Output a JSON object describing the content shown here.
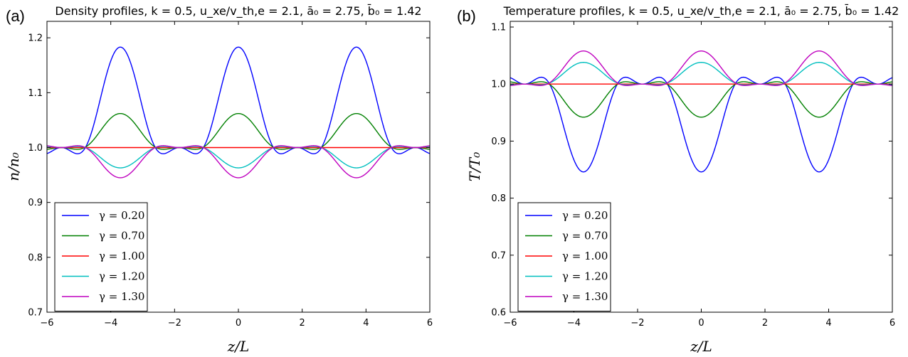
{
  "panels": [
    {
      "label": "(a)",
      "title": "Density profiles, k = 0.5, u_xe/v_th,e = 2.1, ā₀ = 2.75, b̄₀ = 1.42",
      "title_text": "Density profiles, ",
      "title_params": "k = 0.5,  u",
      "xlabel": "z/L",
      "ylabel": "n/n₀",
      "legend_placement": "lower-left"
    },
    {
      "label": "(b)",
      "title": "Temperature profiles, k = 0.5, u_xe/v_th,e = 2.1, ā₀ = 2.75, b̄₀ = 1.42",
      "title_text": "Temperature profiles, ",
      "xlabel": "z/L",
      "ylabel": "T/T₀",
      "legend_placement": "lower-left"
    }
  ],
  "chart_data": [
    {
      "type": "line",
      "title": "Density profiles, k = 0.5, u_xe/v_th,e = 2.1, ā₀ = 2.75, b̄₀ = 1.42",
      "xlabel": "z/L",
      "ylabel": "n/n₀",
      "xlim": [
        -6,
        6
      ],
      "ylim": [
        0.7,
        1.23
      ],
      "xticks": [
        "−6",
        "−4",
        "−2",
        "0",
        "2",
        "4",
        "6"
      ],
      "yticks": [
        "0.7",
        "0.8",
        "0.9",
        "1.0",
        "1.1",
        "1.2"
      ],
      "grid": false,
      "legend": "lower-left",
      "period": 3.7,
      "series": [
        {
          "name": "γ = 0.20",
          "color": "#0000ff",
          "peak": 1.183,
          "side": 0.98
        },
        {
          "name": "γ = 0.70",
          "color": "#008000",
          "peak": 1.062,
          "side": 0.994
        },
        {
          "name": "γ = 1.00",
          "color": "#ff0000",
          "peak": 1.0,
          "side": 1.0
        },
        {
          "name": "γ = 1.20",
          "color": "#00bfbf",
          "peak": 0.963,
          "side": 1.004
        },
        {
          "name": "γ = 1.30",
          "color": "#bf00bf",
          "peak": 0.945,
          "side": 1.006
        }
      ]
    },
    {
      "type": "line",
      "title": "Temperature profiles, k = 0.5, u_xe/v_th,e = 2.1, ā₀ = 2.75, b̄₀ = 1.42",
      "xlabel": "z/L",
      "ylabel": "T/T₀",
      "xlim": [
        -6,
        6
      ],
      "ylim": [
        0.6,
        1.11
      ],
      "xticks": [
        "−6",
        "−4",
        "−2",
        "0",
        "2",
        "4",
        "6"
      ],
      "yticks": [
        "0.6",
        "0.7",
        "0.8",
        "0.9",
        "1.0",
        "1.1"
      ],
      "grid": false,
      "legend": "lower-left",
      "period": 3.7,
      "series": [
        {
          "name": "γ = 0.20",
          "color": "#0000ff",
          "peak": 0.846,
          "side": 1.02
        },
        {
          "name": "γ = 0.70",
          "color": "#008000",
          "peak": 0.942,
          "side": 1.007
        },
        {
          "name": "γ = 1.00",
          "color": "#ff0000",
          "peak": 1.0,
          "side": 1.0
        },
        {
          "name": "γ = 1.20",
          "color": "#00bfbf",
          "peak": 1.038,
          "side": 0.997
        },
        {
          "name": "γ = 1.30",
          "color": "#bf00bf",
          "peak": 1.058,
          "side": 0.995
        }
      ]
    }
  ]
}
